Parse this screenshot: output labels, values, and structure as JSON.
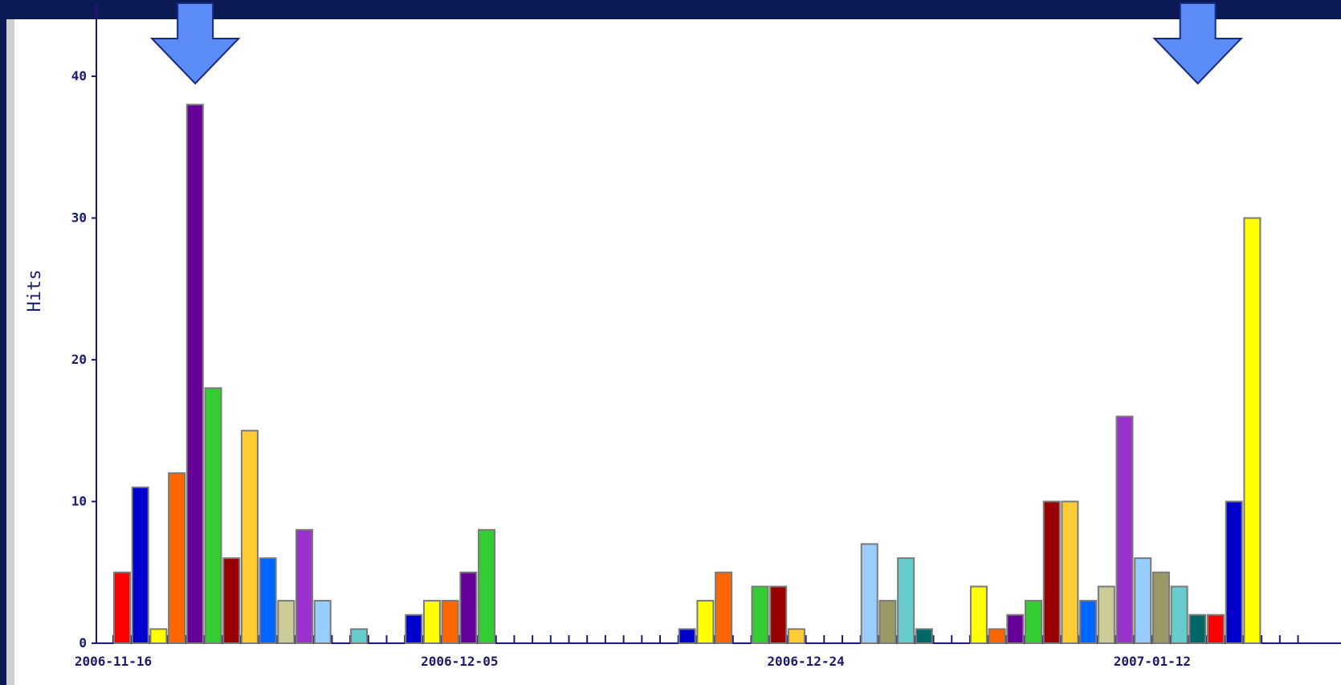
{
  "chart_data": {
    "type": "bar",
    "title": "",
    "xlabel": "",
    "ylabel": "Hits",
    "ylim": [
      0,
      45
    ],
    "yticks": [
      0,
      10,
      20,
      30,
      40
    ],
    "grid": false,
    "legend": "none",
    "x_start": "2006-11-16",
    "x_end": "2007-01-20",
    "xtick_labels": [
      "2006-11-16",
      "2006-12-05",
      "2006-12-24",
      "2007-01-12"
    ],
    "annotations": [
      {
        "type": "down-arrow",
        "at": "2006-11-20",
        "color": "#5b8cf5"
      },
      {
        "type": "down-arrow",
        "at": "2007-01-14",
        "color": "#5b8cf5"
      }
    ],
    "bars": [
      {
        "date": "2006-11-16",
        "value": 5,
        "color": "#ff0000"
      },
      {
        "date": "2006-11-17",
        "value": 11,
        "color": "#0000cc"
      },
      {
        "date": "2006-11-18",
        "value": 1,
        "color": "#ffff00"
      },
      {
        "date": "2006-11-19",
        "value": 12,
        "color": "#ff6600"
      },
      {
        "date": "2006-11-20",
        "value": 38,
        "color": "#660099"
      },
      {
        "date": "2006-11-21",
        "value": 18,
        "color": "#33cc33"
      },
      {
        "date": "2006-11-22",
        "value": 6,
        "color": "#990000"
      },
      {
        "date": "2006-11-23",
        "value": 15,
        "color": "#ffcc33"
      },
      {
        "date": "2006-11-24",
        "value": 6,
        "color": "#0066ff"
      },
      {
        "date": "2006-11-25",
        "value": 3,
        "color": "#cccc99"
      },
      {
        "date": "2006-11-26",
        "value": 8,
        "color": "#9933cc"
      },
      {
        "date": "2006-11-27",
        "value": 3,
        "color": "#99ccff"
      },
      {
        "date": "2006-11-29",
        "value": 1,
        "color": "#66cccc"
      },
      {
        "date": "2006-12-02",
        "value": 2,
        "color": "#0000cc"
      },
      {
        "date": "2006-12-03",
        "value": 3,
        "color": "#ffff00"
      },
      {
        "date": "2006-12-04",
        "value": 3,
        "color": "#ff6600"
      },
      {
        "date": "2006-12-05",
        "value": 5,
        "color": "#660099"
      },
      {
        "date": "2006-12-06",
        "value": 8,
        "color": "#33cc33"
      },
      {
        "date": "2006-12-17",
        "value": 1,
        "color": "#0000cc"
      },
      {
        "date": "2006-12-18",
        "value": 3,
        "color": "#ffff00"
      },
      {
        "date": "2006-12-19",
        "value": 5,
        "color": "#ff6600"
      },
      {
        "date": "2006-12-21",
        "value": 4,
        "color": "#33cc33"
      },
      {
        "date": "2006-12-22",
        "value": 4,
        "color": "#990000"
      },
      {
        "date": "2006-12-23",
        "value": 1,
        "color": "#ffcc33"
      },
      {
        "date": "2006-12-27",
        "value": 7,
        "color": "#99ccff"
      },
      {
        "date": "2006-12-28",
        "value": 3,
        "color": "#999966"
      },
      {
        "date": "2006-12-29",
        "value": 6,
        "color": "#66cccc"
      },
      {
        "date": "2006-12-30",
        "value": 1,
        "color": "#006666"
      },
      {
        "date": "2007-01-02",
        "value": 4,
        "color": "#ffff00"
      },
      {
        "date": "2007-01-03",
        "value": 1,
        "color": "#ff6600"
      },
      {
        "date": "2007-01-04",
        "value": 2,
        "color": "#660099"
      },
      {
        "date": "2007-01-05",
        "value": 3,
        "color": "#33cc33"
      },
      {
        "date": "2007-01-06",
        "value": 10,
        "color": "#990000"
      },
      {
        "date": "2007-01-07",
        "value": 10,
        "color": "#ffcc33"
      },
      {
        "date": "2007-01-08",
        "value": 3,
        "color": "#0066ff"
      },
      {
        "date": "2007-01-09",
        "value": 4,
        "color": "#cccc99"
      },
      {
        "date": "2007-01-10",
        "value": 16,
        "color": "#9933cc"
      },
      {
        "date": "2007-01-11",
        "value": 6,
        "color": "#99ccff"
      },
      {
        "date": "2007-01-12",
        "value": 5,
        "color": "#999966"
      },
      {
        "date": "2007-01-13",
        "value": 4,
        "color": "#66cccc"
      },
      {
        "date": "2007-01-14",
        "value": 2,
        "color": "#006666"
      },
      {
        "date": "2007-01-15",
        "value": 2,
        "color": "#ff0000"
      },
      {
        "date": "2007-01-16",
        "value": 10,
        "color": "#0000cc"
      },
      {
        "date": "2007-01-17",
        "value": 30,
        "color": "#ffff00"
      }
    ]
  }
}
